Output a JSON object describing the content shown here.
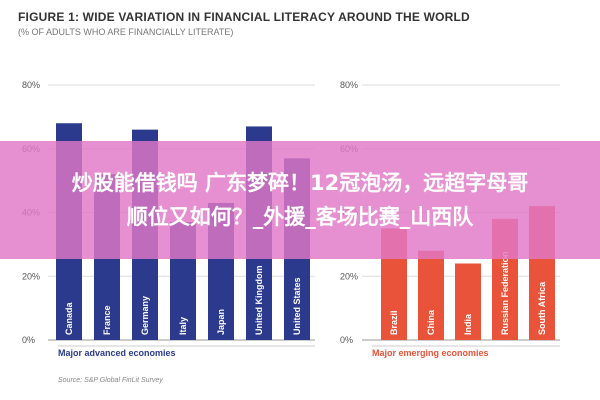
{
  "figure": {
    "title": "FIGURE 1: WIDE VARIATION IN FINANCIAL LITERACY AROUND THE WORLD",
    "subtitle": "(% OF ADULTS WHO ARE FINANCIALLY LITERATE)",
    "source": "Source: S&P Global FinLit Survey"
  },
  "overlay": {
    "line1": "炒股能借钱吗 广东梦碎！12冠泡汤，远超字母哥",
    "line2": "顺位又如何？_外援_客场比赛_山西队"
  },
  "colors": {
    "advanced": "#2b3a8c",
    "emerging": "#e8533a",
    "overlay": "#e178c8"
  },
  "chart_data": [
    {
      "type": "bar",
      "title": "Major advanced economies",
      "ylim": [
        0,
        80
      ],
      "yticks": [
        "0%",
        "20%",
        "40%",
        "60%",
        "80%"
      ],
      "grid": true,
      "categories": [
        "Canada",
        "France",
        "Germany",
        "Italy",
        "Japan",
        "United Kingdom",
        "United States"
      ],
      "values": [
        68,
        52,
        66,
        37,
        43,
        67,
        57
      ]
    },
    {
      "type": "bar",
      "title": "Major emerging economies",
      "ylim": [
        0,
        80
      ],
      "yticks": [
        "0%",
        "20%",
        "40%",
        "60%",
        "80%"
      ],
      "grid": true,
      "categories": [
        "Brazil",
        "China",
        "India",
        "Russian Federation",
        "South Africa"
      ],
      "values": [
        35,
        28,
        24,
        38,
        42
      ]
    }
  ]
}
